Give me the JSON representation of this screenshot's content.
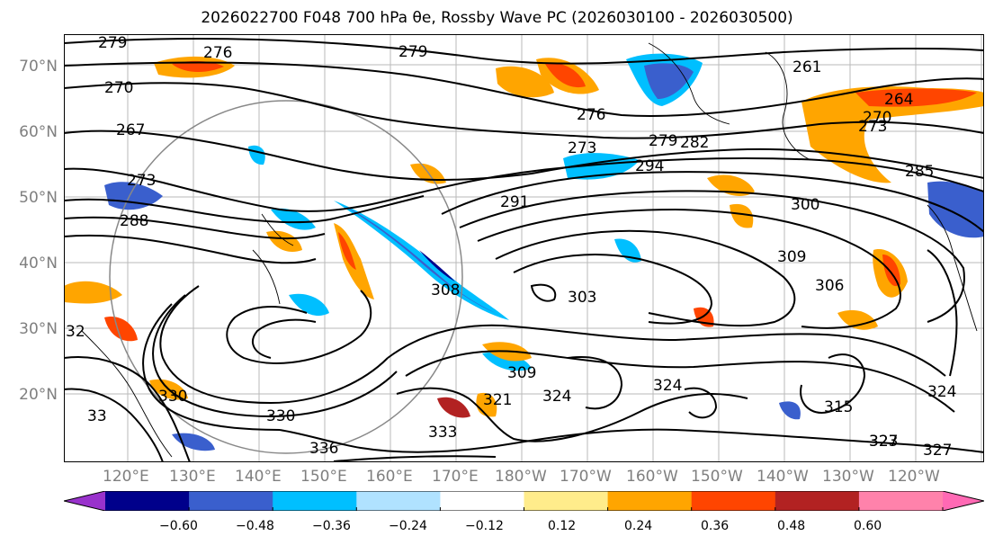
{
  "title": "2026022700 F048 700 hPa θe, Rossby Wave PC (2026030100 - 2026030500)",
  "map": {
    "lat_labels": [
      "70°N",
      "60°N",
      "50°N",
      "40°N",
      "30°N",
      "20°N"
    ],
    "lon_labels": [
      "120°E",
      "130°E",
      "140°E",
      "150°E",
      "160°E",
      "170°E",
      "180°W",
      "170°W",
      "160°W",
      "150°W",
      "140°W",
      "130°W",
      "120°W"
    ],
    "contour_labels": [
      "279",
      "276",
      "279",
      "270",
      "267",
      "273",
      "288",
      "273",
      "276",
      "279",
      "282",
      "294",
      "291",
      "261",
      "264",
      "270",
      "273",
      "285",
      "300",
      "309",
      "306",
      "303",
      "308",
      "309",
      "321",
      "324",
      "330",
      "330",
      "333",
      "336",
      "327",
      "324",
      "323",
      "327",
      "315",
      "324",
      "33",
      "32"
    ]
  },
  "colorbar": {
    "ticks": [
      "−0.60",
      "−0.48",
      "−0.36",
      "−0.24",
      "−0.12",
      "0.12",
      "0.24",
      "0.36",
      "0.48",
      "0.60"
    ],
    "colors": [
      "#9932cc",
      "#00008b",
      "#3a5fcd",
      "#00bfff",
      "#b0e2ff",
      "#ffffff",
      "#ffec8b",
      "#ffa500",
      "#ff4500",
      "#b22222",
      "#ff82ab",
      "#ff69b4"
    ]
  }
}
